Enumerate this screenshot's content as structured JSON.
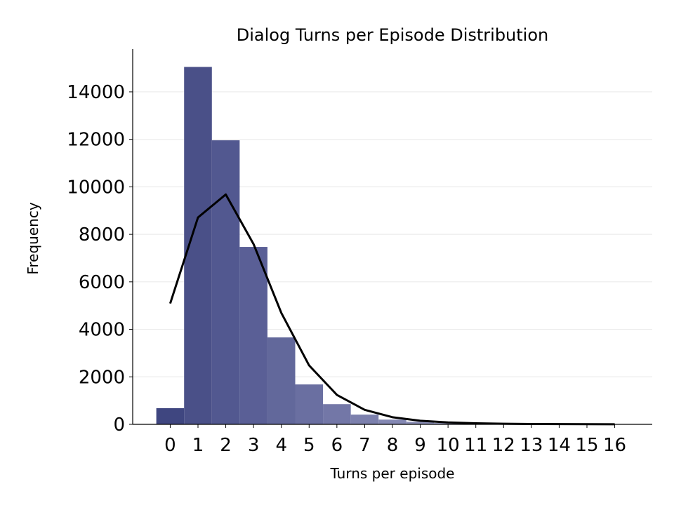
{
  "chart_data": {
    "type": "bar",
    "title": "Dialog Turns per Episode Distribution",
    "xlabel": "Turns per episode",
    "ylabel": "Frequency",
    "categories": [
      "0",
      "1",
      "2",
      "3",
      "4",
      "5",
      "6",
      "7",
      "8",
      "9",
      "10",
      "11",
      "12",
      "13",
      "14",
      "15",
      "16"
    ],
    "values": [
      680,
      15050,
      11960,
      7470,
      3660,
      1680,
      850,
      410,
      200,
      110,
      60,
      30,
      15,
      8,
      4,
      2,
      1
    ],
    "line": {
      "x": [
        0,
        1,
        2,
        3,
        4,
        5,
        6,
        7,
        8,
        9,
        10,
        11,
        12,
        13,
        14,
        15,
        16
      ],
      "values": [
        5090,
        8710,
        9680,
        7590,
        4690,
        2480,
        1240,
        610,
        300,
        150,
        80,
        45,
        25,
        15,
        10,
        6,
        4
      ],
      "color": "#000000"
    },
    "ylim": [
      0,
      15800
    ],
    "xlim": [
      -1.35,
      17.35
    ],
    "yticks": [
      "0",
      "2000",
      "4000",
      "6000",
      "8000",
      "10000",
      "12000",
      "14000"
    ],
    "ytick_values": [
      0,
      2000,
      4000,
      6000,
      8000,
      10000,
      12000,
      14000
    ],
    "grid": "horizontal",
    "bar_colors": [
      "#3f4680",
      "#4a5088",
      "#525890",
      "#5a5f96",
      "#62689b",
      "#6a6fa1",
      "#7377a7",
      "#7c80ad",
      "#8488b3",
      "#8c90b8",
      "#9498bd",
      "#9ca0c2",
      "#a4a8c7",
      "#acb0cc",
      "#b4b8d1",
      "#bcc0d6",
      "#c4c8db"
    ]
  }
}
